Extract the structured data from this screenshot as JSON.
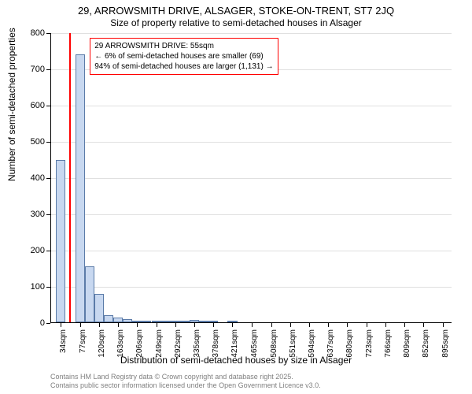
{
  "chart": {
    "type": "histogram",
    "title_main": "29, ARROWSMITH DRIVE, ALSAGER, STOKE-ON-TRENT, ST7 2JQ",
    "title_sub": "Size of property relative to semi-detached houses in Alsager",
    "ylabel": "Number of semi-detached properties",
    "xlabel": "Distribution of semi-detached houses by size in Alsager",
    "ylim": [
      0,
      800
    ],
    "ytick_step": 100,
    "yticks": [
      0,
      100,
      200,
      300,
      400,
      500,
      600,
      700,
      800
    ],
    "xticks": [
      34,
      77,
      120,
      163,
      206,
      249,
      292,
      335,
      378,
      421,
      465,
      508,
      551,
      594,
      637,
      680,
      723,
      766,
      809,
      852,
      895
    ],
    "xtick_unit": "sqm",
    "xlim": [
      12,
      917
    ],
    "bar_color": "#c8d8f0",
    "bar_border": "#5b7ba8",
    "marker_color": "#ff0000",
    "marker_value": 55,
    "grid_color": "#e0e0e0",
    "background_color": "#ffffff",
    "bars": [
      {
        "x": 34,
        "value": 448
      },
      {
        "x": 55.5,
        "value": 0
      },
      {
        "x": 77,
        "value": 740
      },
      {
        "x": 98.5,
        "value": 155
      },
      {
        "x": 120,
        "value": 78
      },
      {
        "x": 141.5,
        "value": 20
      },
      {
        "x": 163,
        "value": 12
      },
      {
        "x": 184.5,
        "value": 8
      },
      {
        "x": 206,
        "value": 5
      },
      {
        "x": 227.5,
        "value": 4
      },
      {
        "x": 249,
        "value": 5
      },
      {
        "x": 270.5,
        "value": 3
      },
      {
        "x": 292,
        "value": 4
      },
      {
        "x": 313.5,
        "value": 2
      },
      {
        "x": 335,
        "value": 6
      },
      {
        "x": 356.5,
        "value": 3
      },
      {
        "x": 378,
        "value": 2
      },
      {
        "x": 421,
        "value": 5
      },
      {
        "x": 465,
        "value": 0
      }
    ],
    "bar_width_data": 21.5,
    "annotation": {
      "line1": "29 ARROWSMITH DRIVE: 55sqm",
      "line2": "← 6% of semi-detached houses are smaller (69)",
      "line3": "94% of semi-detached houses are larger (1,131) →",
      "border_color": "#ff0000"
    },
    "footer1": "Contains HM Land Registry data © Crown copyright and database right 2025.",
    "footer2": "Contains public sector information licensed under the Open Government Licence v3.0.",
    "footer_color": "#808080"
  }
}
